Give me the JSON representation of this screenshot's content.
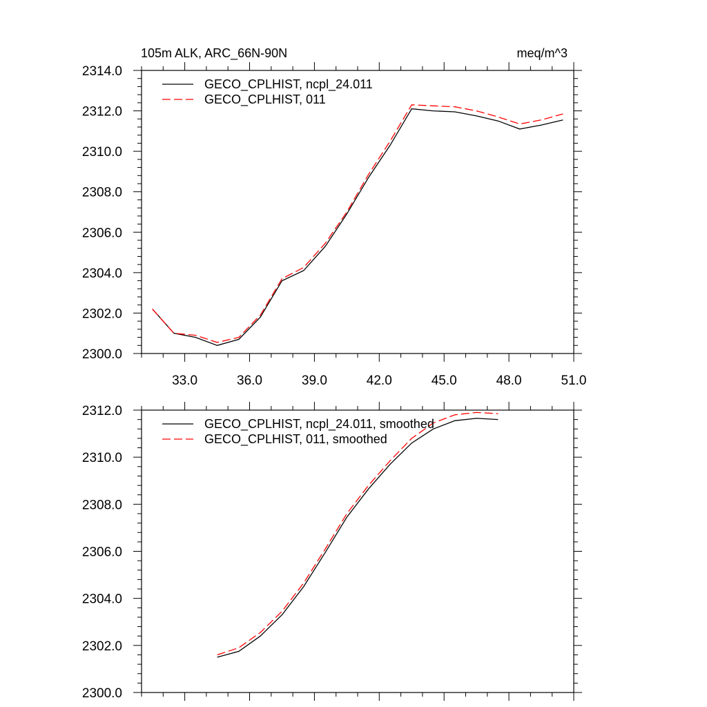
{
  "chart_data": [
    {
      "type": "line",
      "title_left": "105m ALK, ARC_66N-90N",
      "title_right": "meq/m^3",
      "xlabel": "",
      "ylabel": "",
      "xlim": [
        31.0,
        51.0
      ],
      "ylim": [
        2300.0,
        2314.0
      ],
      "x_ticks": [
        "33.0",
        "36.0",
        "39.0",
        "42.0",
        "45.0",
        "48.0",
        "51.0"
      ],
      "y_ticks": [
        "2300.0",
        "2302.0",
        "2304.0",
        "2306.0",
        "2308.0",
        "2310.0",
        "2312.0",
        "2314.0"
      ],
      "legend_position": "top-left",
      "series": [
        {
          "name": "GECO_CPLHIST, ncpl_24.011",
          "color": "#000000",
          "dash": "solid",
          "x": [
            31.5,
            32.5,
            33.5,
            34.5,
            35.5,
            36.5,
            37.5,
            38.5,
            39.5,
            40.5,
            41.5,
            42.5,
            43.5,
            44.5,
            45.5,
            46.5,
            47.5,
            48.5,
            49.5,
            50.5
          ],
          "y": [
            2302.2,
            2301.0,
            2300.8,
            2300.4,
            2300.7,
            2301.8,
            2303.6,
            2304.1,
            2305.3,
            2306.9,
            2308.7,
            2310.3,
            2312.1,
            2312.0,
            2311.95,
            2311.75,
            2311.5,
            2311.1,
            2311.3,
            2311.55
          ]
        },
        {
          "name": "GECO_CPLHIST, 011",
          "color": "#ff0000",
          "dash": "dashed",
          "x": [
            31.5,
            32.5,
            33.5,
            34.5,
            35.5,
            36.5,
            37.5,
            38.5,
            39.5,
            40.5,
            41.5,
            42.5,
            43.5,
            44.5,
            45.5,
            46.5,
            47.5,
            48.5,
            49.5,
            50.5
          ],
          "y": [
            2302.2,
            2301.0,
            2300.9,
            2300.55,
            2300.8,
            2301.9,
            2303.7,
            2304.25,
            2305.45,
            2307.0,
            2308.85,
            2310.5,
            2312.3,
            2312.25,
            2312.2,
            2312.0,
            2311.7,
            2311.35,
            2311.55,
            2311.85
          ]
        }
      ]
    },
    {
      "type": "line",
      "xlabel": "",
      "ylabel": "",
      "xlim": [
        31.0,
        51.0
      ],
      "ylim": [
        2300.0,
        2312.0
      ],
      "y_ticks": [
        "2300.0",
        "2302.0",
        "2304.0",
        "2306.0",
        "2308.0",
        "2310.0",
        "2312.0"
      ],
      "legend_position": "top-left",
      "series": [
        {
          "name": "GECO_CPLHIST, ncpl_24.011, smoothed",
          "color": "#000000",
          "dash": "solid",
          "x": [
            34.5,
            35.5,
            36.5,
            37.5,
            38.5,
            39.5,
            40.5,
            41.5,
            42.5,
            43.5,
            44.5,
            45.5,
            46.5,
            47.5
          ],
          "y": [
            2301.5,
            2301.75,
            2302.4,
            2303.3,
            2304.5,
            2305.95,
            2307.45,
            2308.65,
            2309.7,
            2310.6,
            2311.2,
            2311.55,
            2311.65,
            2311.6
          ]
        },
        {
          "name": "GECO_CPLHIST, 011, smoothed",
          "color": "#ff0000",
          "dash": "dashed",
          "x": [
            34.5,
            35.5,
            36.5,
            37.5,
            38.5,
            39.5,
            40.5,
            41.5,
            42.5,
            43.5,
            44.5,
            45.5,
            46.5,
            47.5
          ],
          "y": [
            2301.6,
            2301.9,
            2302.55,
            2303.45,
            2304.65,
            2306.1,
            2307.6,
            2308.8,
            2309.85,
            2310.8,
            2311.45,
            2311.8,
            2311.9,
            2311.85
          ]
        }
      ]
    }
  ]
}
